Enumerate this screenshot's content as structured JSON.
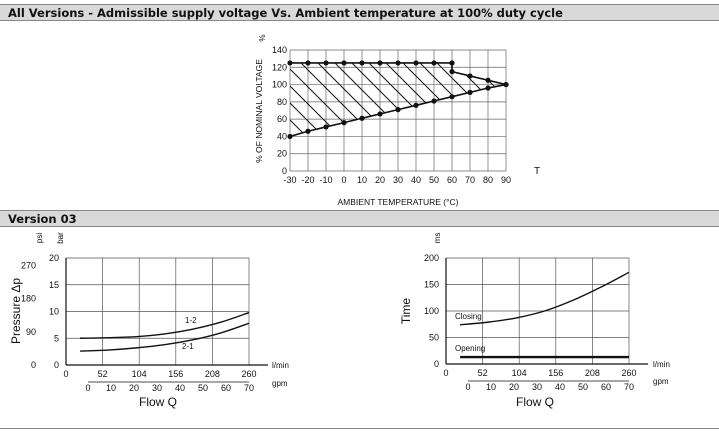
{
  "header1": "All Versions - Admissible supply voltage Vs. Ambient temperature at 100% duty cycle",
  "header2": "Version 03",
  "chart_data": [
    {
      "type": "area",
      "title": "",
      "xlabel": "AMBIENT TEMPERATURE (°C)",
      "ylabel": "% OF NOMINAL VOLTAGE",
      "y_unit": "%",
      "x_axis_letter": "T",
      "xlim": [
        -30,
        90
      ],
      "ylim": [
        0,
        140
      ],
      "x_ticks": [
        -30,
        -20,
        -10,
        0,
        10,
        20,
        30,
        40,
        50,
        60,
        70,
        80,
        90
      ],
      "y_ticks": [
        0,
        20,
        40,
        60,
        80,
        100,
        120,
        140
      ],
      "grid": true,
      "series": [
        {
          "points": [
            [
              -30,
              125
            ],
            [
              -20,
              125
            ],
            [
              -10,
              125
            ],
            [
              0,
              125
            ],
            [
              10,
              125
            ],
            [
              20,
              125
            ],
            [
              30,
              125
            ],
            [
              40,
              125
            ],
            [
              50,
              125
            ],
            [
              60,
              125
            ]
          ]
        },
        {
          "points": [
            [
              60,
              125
            ],
            [
              60,
              115
            ],
            [
              70,
              110
            ],
            [
              80,
              105
            ],
            [
              90,
              100
            ]
          ]
        },
        {
          "points": [
            [
              -30,
              40
            ],
            [
              -20,
              46
            ],
            [
              -10,
              51
            ],
            [
              0,
              56
            ],
            [
              10,
              61
            ],
            [
              20,
              66
            ],
            [
              30,
              71
            ],
            [
              40,
              76
            ],
            [
              50,
              81
            ],
            [
              60,
              86
            ],
            [
              70,
              91
            ],
            [
              80,
              96
            ],
            [
              90,
              100
            ]
          ]
        }
      ]
    },
    {
      "type": "line",
      "xlabel": "Flow Q",
      "ylabel": "Pressure Δp",
      "x_unit_top": "l/min",
      "x_unit_bottom": "gpm",
      "y_unit_left": "psi",
      "y_unit_right": "bar",
      "xlim_lmin": [
        0,
        260
      ],
      "x_ticks_lmin": [
        0,
        52,
        104,
        156,
        208,
        260
      ],
      "x_ticks_gpm": [
        0,
        10,
        20,
        30,
        40,
        50,
        60,
        70
      ],
      "ylim_bar": [
        0,
        20
      ],
      "y_ticks_bar": [
        0,
        5,
        10,
        15,
        20
      ],
      "y_ticks_psi": [
        0,
        90,
        180,
        270
      ],
      "grid": true,
      "series": [
        {
          "name": "1-2",
          "x": [
            20,
            60,
            100,
            140,
            180,
            220,
            260
          ],
          "y": [
            5.0,
            5.1,
            5.3,
            5.8,
            6.7,
            8.0,
            9.8
          ]
        },
        {
          "name": "2-1",
          "x": [
            20,
            60,
            100,
            140,
            180,
            220,
            260
          ],
          "y": [
            2.6,
            2.8,
            3.2,
            3.8,
            4.7,
            6.0,
            7.8
          ]
        }
      ]
    },
    {
      "type": "line",
      "xlabel": "Flow Q",
      "ylabel": "Time",
      "y_unit": "ms",
      "x_unit_top": "l/min",
      "x_unit_bottom": "gpm",
      "xlim_lmin": [
        0,
        260
      ],
      "x_ticks_lmin": [
        0,
        52,
        104,
        156,
        208,
        260
      ],
      "x_ticks_gpm": [
        0,
        10,
        20,
        30,
        40,
        50,
        60,
        70
      ],
      "ylim": [
        0,
        200
      ],
      "y_ticks": [
        0,
        50,
        100,
        150,
        200
      ],
      "grid": true,
      "series": [
        {
          "name": "Closing",
          "x": [
            20,
            60,
            100,
            140,
            180,
            220,
            260
          ],
          "y": [
            74,
            79,
            87,
            100,
            120,
            145,
            173
          ]
        },
        {
          "name": "Opening",
          "x": [
            20,
            260
          ],
          "y": [
            13,
            13
          ]
        }
      ]
    }
  ]
}
